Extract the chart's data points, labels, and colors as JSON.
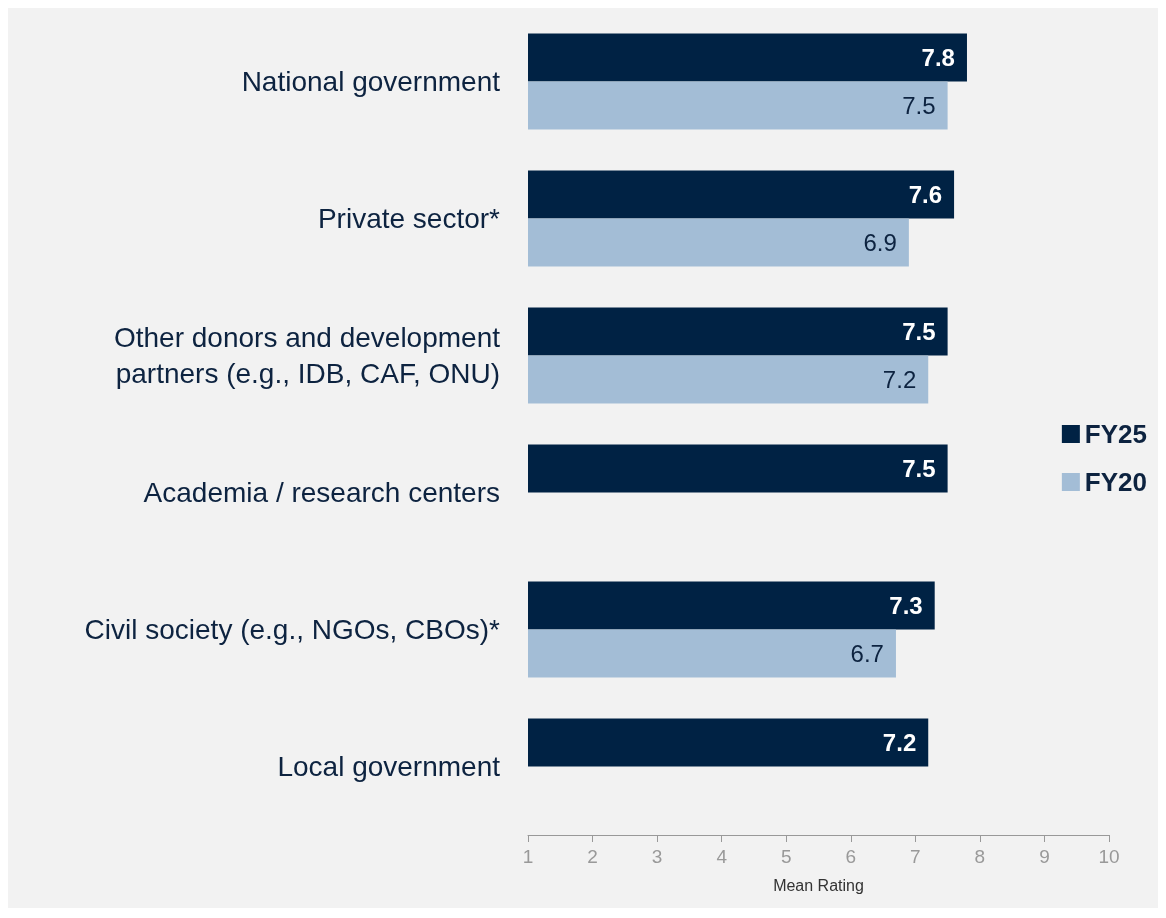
{
  "chart_data": {
    "type": "bar",
    "orientation": "horizontal",
    "xlabel": "Mean Rating",
    "categories": [
      "National government",
      "Private sector*",
      "Other donors and development\npartners (e.g., IDB, CAF, ONU)",
      "Academia / research centers",
      "Civil society (e.g., NGOs, CBOs)*",
      "Local government"
    ],
    "series": [
      {
        "name": "FY25",
        "color": "#002244",
        "values": [
          7.8,
          7.6,
          7.5,
          7.5,
          7.3,
          7.2
        ]
      },
      {
        "name": "FY20",
        "color": "#a3bdd6",
        "values": [
          7.5,
          6.9,
          7.2,
          null,
          6.7,
          null
        ]
      }
    ],
    "xlim": [
      1,
      10
    ],
    "xticks": [
      1,
      2,
      3,
      4,
      5,
      6,
      7,
      8,
      9,
      10
    ],
    "data_labels": true,
    "legend": "right",
    "grid": false
  }
}
